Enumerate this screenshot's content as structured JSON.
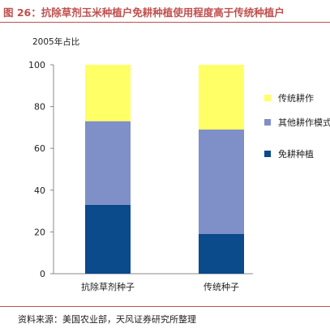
{
  "header": {
    "title": "图 26：抗除草剂玉米种植户免耕种植使用程度高于传统种植户"
  },
  "footer": {
    "source": "资料来源：美国农业部，天风证券研究所整理"
  },
  "chart_data": {
    "type": "bar",
    "stacked": true,
    "title": "图 26：抗除草剂玉米种植户免耕种植使用程度高于传统种植户",
    "unit_label": "2005年占比",
    "categories": [
      "抗除草剂种子",
      "传统种子"
    ],
    "series": [
      {
        "name": "免耕种植",
        "values": [
          33,
          19
        ],
        "color": "#0b4a8b"
      },
      {
        "name": "其他耕作模式",
        "values": [
          40,
          50
        ],
        "color": "#7f8fc7"
      },
      {
        "name": "传统耕作",
        "values": [
          27,
          31
        ],
        "color": "#ffff66"
      }
    ],
    "legend_order": [
      "传统耕作",
      "其他耕作模式",
      "免耕种植"
    ],
    "legend_position": "right",
    "ylim": [
      0,
      100
    ],
    "yticks": [
      0,
      20,
      40,
      60,
      80,
      100
    ],
    "grid": false
  }
}
